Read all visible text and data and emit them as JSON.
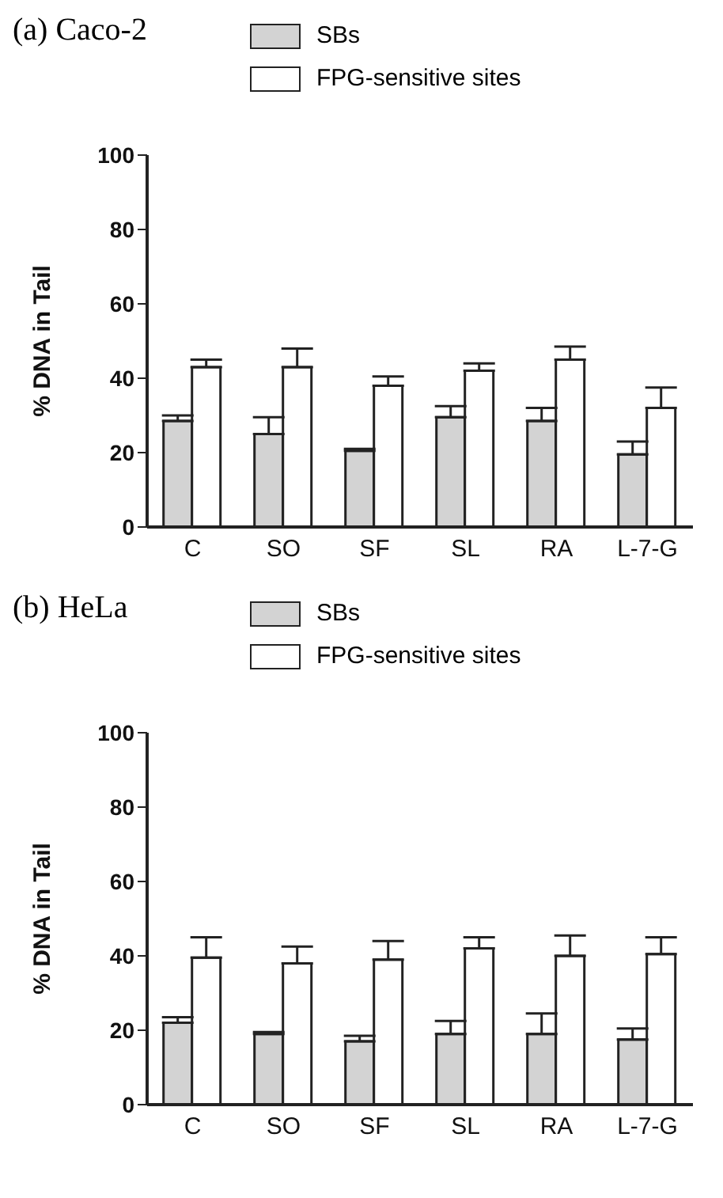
{
  "chart_data": [
    {
      "type": "bar",
      "title": "(a) Caco-2",
      "ylabel": "% DNA in Tail",
      "categories": [
        "C",
        "SO",
        "SF",
        "SL",
        "RA",
        "L-7-G"
      ],
      "ylim": [
        0,
        100
      ],
      "yticks": [
        0,
        20,
        40,
        60,
        80,
        100
      ],
      "legend": "top",
      "series": [
        {
          "name": "SBs",
          "color": "#d3d3d3",
          "values": [
            28.5,
            25,
            20.5,
            29.5,
            28.5,
            19.5
          ],
          "errors": [
            [
              28.5,
              30
            ],
            [
              25,
              29.5
            ],
            [
              20.5,
              21
            ],
            [
              29.5,
              32.5
            ],
            [
              28.5,
              32
            ],
            [
              19.5,
              23
            ]
          ]
        },
        {
          "name": "FPG-sensitive sites",
          "color": "#ffffff",
          "values": [
            43,
            43,
            38,
            42,
            45,
            32
          ],
          "errors": [
            [
              43,
              45
            ],
            [
              43,
              48
            ],
            [
              38,
              40.5
            ],
            [
              42,
              44
            ],
            [
              45,
              48.5
            ],
            [
              32,
              37.5
            ]
          ]
        }
      ]
    },
    {
      "type": "bar",
      "title": "(b) HeLa",
      "ylabel": "% DNA in Tail",
      "categories": [
        "C",
        "SO",
        "SF",
        "SL",
        "RA",
        "L-7-G"
      ],
      "ylim": [
        0,
        100
      ],
      "yticks": [
        0,
        20,
        40,
        60,
        80,
        100
      ],
      "legend": "top",
      "series": [
        {
          "name": "SBs",
          "color": "#d3d3d3",
          "values": [
            22,
            19,
            17,
            19,
            19,
            17.5
          ],
          "errors": [
            [
              22,
              23.5
            ],
            [
              19,
              19.5
            ],
            [
              17,
              18.5
            ],
            [
              19,
              22.5
            ],
            [
              19,
              24.5
            ],
            [
              17.5,
              20.5
            ]
          ]
        },
        {
          "name": "FPG-sensitive sites",
          "color": "#ffffff",
          "values": [
            39.5,
            38,
            39,
            42,
            40,
            40.5
          ],
          "errors": [
            [
              39.5,
              45
            ],
            [
              38,
              42.5
            ],
            [
              39,
              44
            ],
            [
              42,
              45
            ],
            [
              40,
              45.5
            ],
            [
              40.5,
              45
            ]
          ]
        }
      ]
    }
  ]
}
